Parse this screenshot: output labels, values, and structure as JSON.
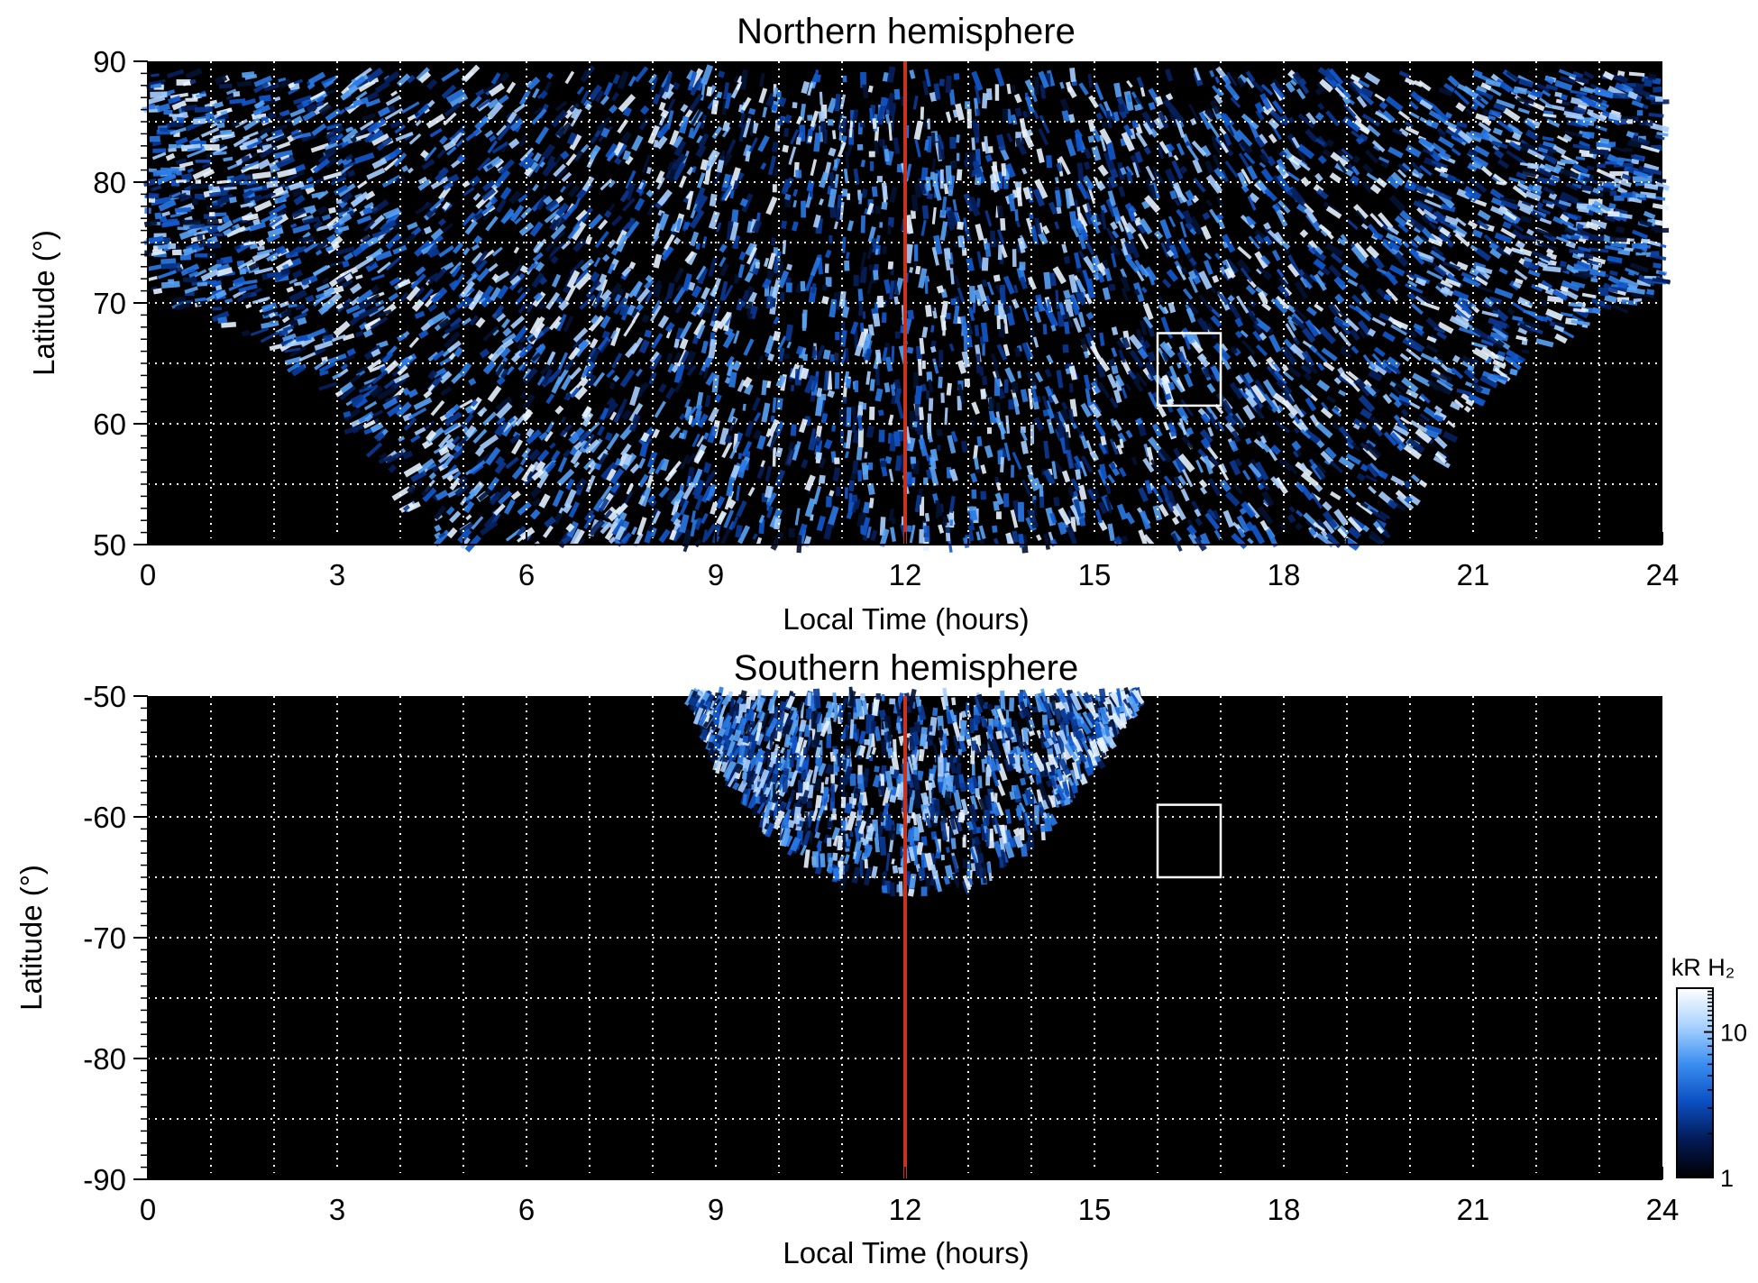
{
  "chart_data": [
    {
      "type": "heatmap",
      "title": "Northern hemisphere",
      "xlabel": "Local Time (hours)",
      "ylabel": "Latitude (°)",
      "xlim": [
        0,
        24
      ],
      "ylim": [
        50,
        90
      ],
      "x_ticks": [
        "0",
        "3",
        "6",
        "9",
        "12",
        "15",
        "18",
        "21",
        "24"
      ],
      "y_ticks": [
        "50",
        "60",
        "70",
        "80",
        "90"
      ],
      "grid": true,
      "coverage_note": "",
      "reference_line": {
        "x": 12,
        "color": "#c8321e"
      },
      "highlight_box": {
        "x": [
          16,
          17
        ],
        "y": [
          61.5,
          67.5
        ]
      },
      "coverage": [
        {
          "lt": 0,
          "min_lat": 70.5
        },
        {
          "lt": 1,
          "min_lat": 68.5
        },
        {
          "lt": 2,
          "min_lat": 66
        },
        {
          "lt": 3,
          "min_lat": 61
        },
        {
          "lt": 3.8,
          "min_lat": 55
        },
        {
          "lt": 4.5,
          "min_lat": 50
        },
        {
          "lt": 19.5,
          "min_lat": 50
        },
        {
          "lt": 20.3,
          "min_lat": 55
        },
        {
          "lt": 21,
          "min_lat": 61
        },
        {
          "lt": 22,
          "min_lat": 66
        },
        {
          "lt": 23,
          "min_lat": 68.5
        },
        {
          "lt": 24,
          "min_lat": 70.5
        }
      ],
      "max_lat": 89
    },
    {
      "type": "heatmap",
      "title": "Southern hemisphere",
      "xlabel": "Local Time (hours)",
      "ylabel": "Latitude (°)",
      "xlim": [
        0,
        24
      ],
      "ylim": [
        -90,
        -50
      ],
      "x_ticks": [
        "0",
        "3",
        "6",
        "9",
        "12",
        "15",
        "18",
        "21",
        "24"
      ],
      "y_ticks": [
        "-90",
        "-80",
        "-70",
        "-60",
        "-50"
      ],
      "grid": true,
      "reference_line": {
        "x": 12,
        "color": "#c8321e"
      },
      "highlight_box": {
        "x": [
          16,
          17
        ],
        "y": [
          -65,
          -59
        ]
      },
      "coverage": [
        {
          "lt": 8.6,
          "min_lat": -50
        },
        {
          "lt": 9,
          "min_lat": -56
        },
        {
          "lt": 10,
          "min_lat": -62
        },
        {
          "lt": 11,
          "min_lat": -65.5
        },
        {
          "lt": 12,
          "min_lat": -66.5
        },
        {
          "lt": 13,
          "min_lat": -66
        },
        {
          "lt": 14,
          "min_lat": -62.5
        },
        {
          "lt": 15,
          "min_lat": -56
        },
        {
          "lt": 15.7,
          "min_lat": -50
        }
      ],
      "max_lat": -50
    }
  ],
  "colorbar": {
    "label": "kR H₂",
    "tick_labels": [
      "1",
      "10"
    ],
    "range": [
      1,
      20
    ],
    "scale": "log",
    "colors": [
      "#000000",
      "#031a55",
      "#0b4fc2",
      "#3a8ef0",
      "#a9d2ff",
      "#ffffff"
    ]
  },
  "colors": {
    "background": "#000000",
    "grid": "#ffffff",
    "reference_line": "#c8321e",
    "box": "#ffffff"
  }
}
